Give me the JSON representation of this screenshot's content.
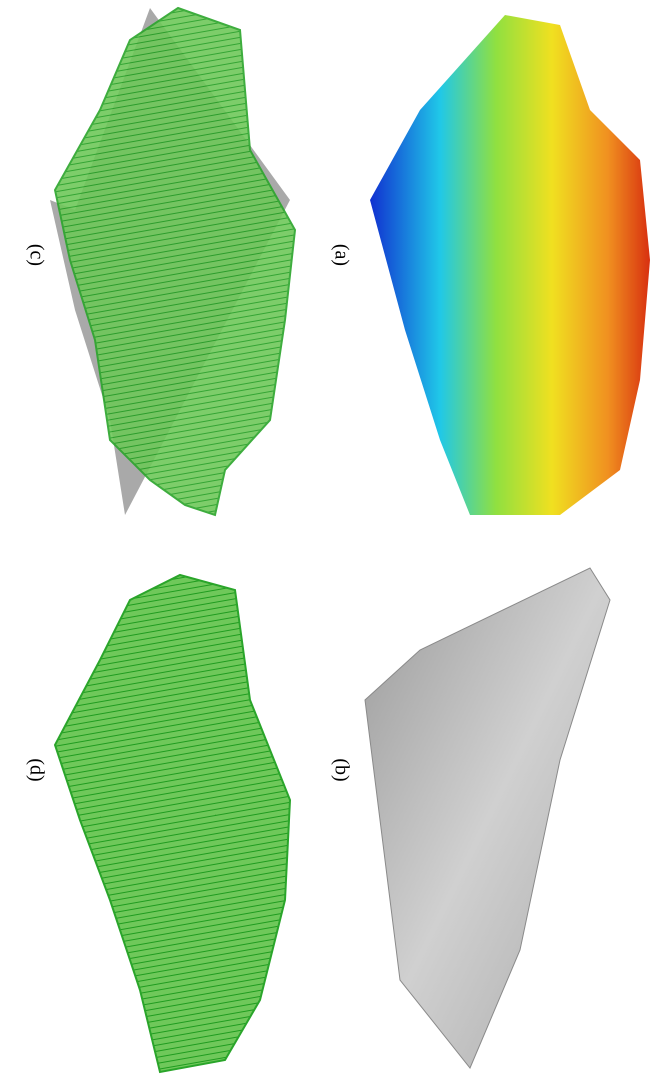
{
  "panels": [
    {
      "label": "(c)"
    },
    {
      "label": "(a)"
    },
    {
      "label": "(d)"
    },
    {
      "label": "(b)"
    }
  ]
}
